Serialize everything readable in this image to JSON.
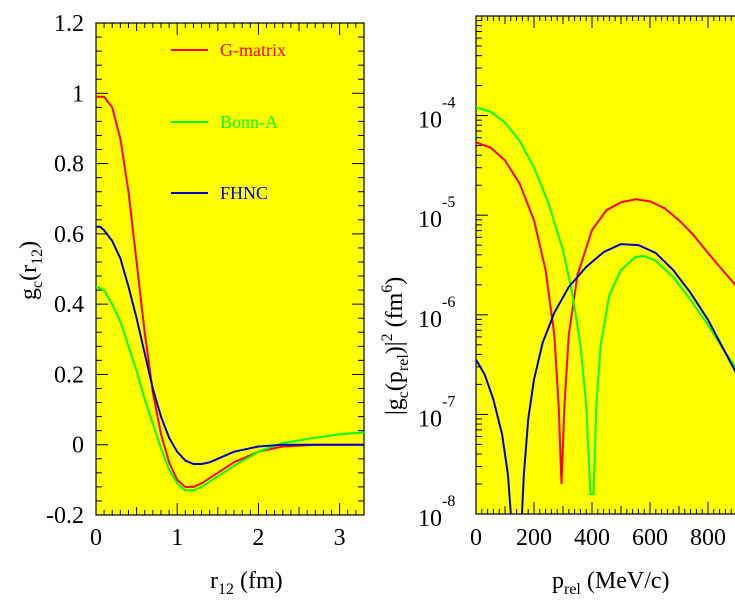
{
  "chart_data": [
    {
      "type": "line",
      "xlabel": {
        "main": "r",
        "sub": "12",
        "unit": " (fm)"
      },
      "ylabel": {
        "main": "g",
        "sub1": "c",
        "mid": "(r",
        "sub2": "12",
        "end": ")"
      },
      "xlim": [
        0,
        3.3
      ],
      "ylim": [
        -0.2,
        1.2
      ],
      "x_ticks": [
        "0",
        "1",
        "2",
        "3"
      ],
      "x_tick_values": [
        0,
        1,
        2,
        3
      ],
      "y_ticks": [
        "-0.2",
        "0",
        "0.2",
        "0.4",
        "0.6",
        "0.8",
        "1",
        "1.2"
      ],
      "y_tick_values": [
        -0.2,
        0,
        0.2,
        0.4,
        0.6,
        0.8,
        1,
        1.2
      ],
      "legend": "top-center",
      "series": [
        {
          "name": "G-matrix",
          "color": "#ff0000",
          "x": [
            0,
            0.1,
            0.2,
            0.3,
            0.4,
            0.5,
            0.6,
            0.7,
            0.8,
            0.9,
            1.0,
            1.1,
            1.2,
            1.3,
            1.5,
            1.7,
            2.0,
            2.3,
            2.7,
            3.0,
            3.3
          ],
          "y": [
            0.99,
            0.99,
            0.96,
            0.87,
            0.72,
            0.52,
            0.32,
            0.15,
            0.03,
            -0.05,
            -0.1,
            -0.12,
            -0.12,
            -0.11,
            -0.08,
            -0.05,
            -0.02,
            -0.005,
            0,
            0,
            0
          ]
        },
        {
          "name": "Bonn-A",
          "color": "#00ff00",
          "x": [
            0,
            0.1,
            0.2,
            0.3,
            0.4,
            0.5,
            0.6,
            0.7,
            0.8,
            0.9,
            1.0,
            1.1,
            1.2,
            1.3,
            1.5,
            1.7,
            2.0,
            2.3,
            2.7,
            3.0,
            3.3
          ],
          "y": [
            0.45,
            0.44,
            0.4,
            0.35,
            0.28,
            0.21,
            0.13,
            0.06,
            -0.01,
            -0.07,
            -0.11,
            -0.13,
            -0.13,
            -0.12,
            -0.09,
            -0.06,
            -0.02,
            0.005,
            0.02,
            0.03,
            0.035
          ]
        },
        {
          "name": "FHNC",
          "color": "#0000cc",
          "x": [
            0,
            0.05,
            0.1,
            0.2,
            0.3,
            0.4,
            0.5,
            0.6,
            0.7,
            0.8,
            0.9,
            1.0,
            1.1,
            1.2,
            1.3,
            1.4,
            1.5,
            1.7,
            2.0,
            2.3,
            2.7,
            3.0,
            3.3
          ],
          "y": [
            0.62,
            0.62,
            0.61,
            0.58,
            0.53,
            0.45,
            0.36,
            0.26,
            0.16,
            0.08,
            0.02,
            -0.02,
            -0.045,
            -0.055,
            -0.055,
            -0.05,
            -0.04,
            -0.02,
            -0.005,
            0,
            0,
            0,
            0
          ]
        }
      ],
      "legend_entries": [
        "G-matrix",
        "Bonn-A",
        "FHNC"
      ]
    },
    {
      "type": "line",
      "log_y": true,
      "xlabel": {
        "main": "p",
        "sub": "rel",
        "unit": " (MeV/c)"
      },
      "ylabel": {
        "pre": "|g",
        "sub1": "c",
        "mid": "(p",
        "sub2": "rel",
        "post": ")|",
        "sup1": "2",
        "unit": " (fm",
        "sup2": "6",
        "end": ")"
      },
      "xlim": [
        0,
        900
      ],
      "ylim_exp": [
        -8,
        -3
      ],
      "x_ticks": [
        "0",
        "200",
        "400",
        "600",
        "800"
      ],
      "x_tick_values": [
        0,
        200,
        400,
        600,
        800
      ],
      "y_ticks": [
        {
          "base": "10",
          "exp": "-4",
          "value": -4
        },
        {
          "base": "10",
          "exp": "-5",
          "value": -5
        },
        {
          "base": "10",
          "exp": "-6",
          "value": -6
        },
        {
          "base": "10",
          "exp": "-7",
          "value": -7
        },
        {
          "base": "10",
          "exp": "-8",
          "value": -8
        }
      ],
      "series": [
        {
          "name": "G-matrix",
          "color": "#ff0000",
          "x": [
            0,
            50,
            100,
            150,
            200,
            240,
            270,
            285,
            295,
            305,
            320,
            350,
            400,
            450,
            500,
            550,
            600,
            650,
            700,
            750,
            800,
            850,
            900
          ],
          "y_log10": [
            -4.27,
            -4.32,
            -4.45,
            -4.68,
            -5.05,
            -5.55,
            -6.2,
            -6.9,
            -7.7,
            -6.9,
            -6.2,
            -5.6,
            -5.15,
            -4.95,
            -4.87,
            -4.84,
            -4.86,
            -4.93,
            -5.05,
            -5.2,
            -5.38,
            -5.55,
            -5.72
          ]
        },
        {
          "name": "Bonn-A",
          "color": "#00ff00",
          "x": [
            0,
            50,
            100,
            150,
            200,
            250,
            300,
            330,
            360,
            380,
            395,
            405,
            415,
            430,
            460,
            500,
            550,
            580,
            620,
            680,
            740,
            800,
            860,
            900
          ],
          "y_log10": [
            -3.92,
            -3.96,
            -4.07,
            -4.25,
            -4.52,
            -4.88,
            -5.35,
            -5.75,
            -6.3,
            -6.9,
            -7.8,
            -7.8,
            -6.9,
            -6.3,
            -5.8,
            -5.55,
            -5.42,
            -5.41,
            -5.46,
            -5.62,
            -5.85,
            -6.1,
            -6.38,
            -6.55
          ]
        },
        {
          "name": "FHNC",
          "color": "#0000cc",
          "x": [
            0,
            30,
            60,
            90,
            110,
            125,
            135,
            145,
            155,
            165,
            180,
            200,
            230,
            270,
            320,
            380,
            440,
            500,
            560,
            620,
            680,
            740,
            800,
            860,
            900
          ],
          "y_log10": [
            -6.45,
            -6.6,
            -6.85,
            -7.2,
            -7.6,
            -8.2,
            -8.8,
            -8.8,
            -8.2,
            -7.6,
            -7.05,
            -6.65,
            -6.28,
            -5.98,
            -5.72,
            -5.52,
            -5.37,
            -5.29,
            -5.3,
            -5.38,
            -5.55,
            -5.78,
            -6.05,
            -6.38,
            -6.6
          ]
        }
      ]
    }
  ]
}
